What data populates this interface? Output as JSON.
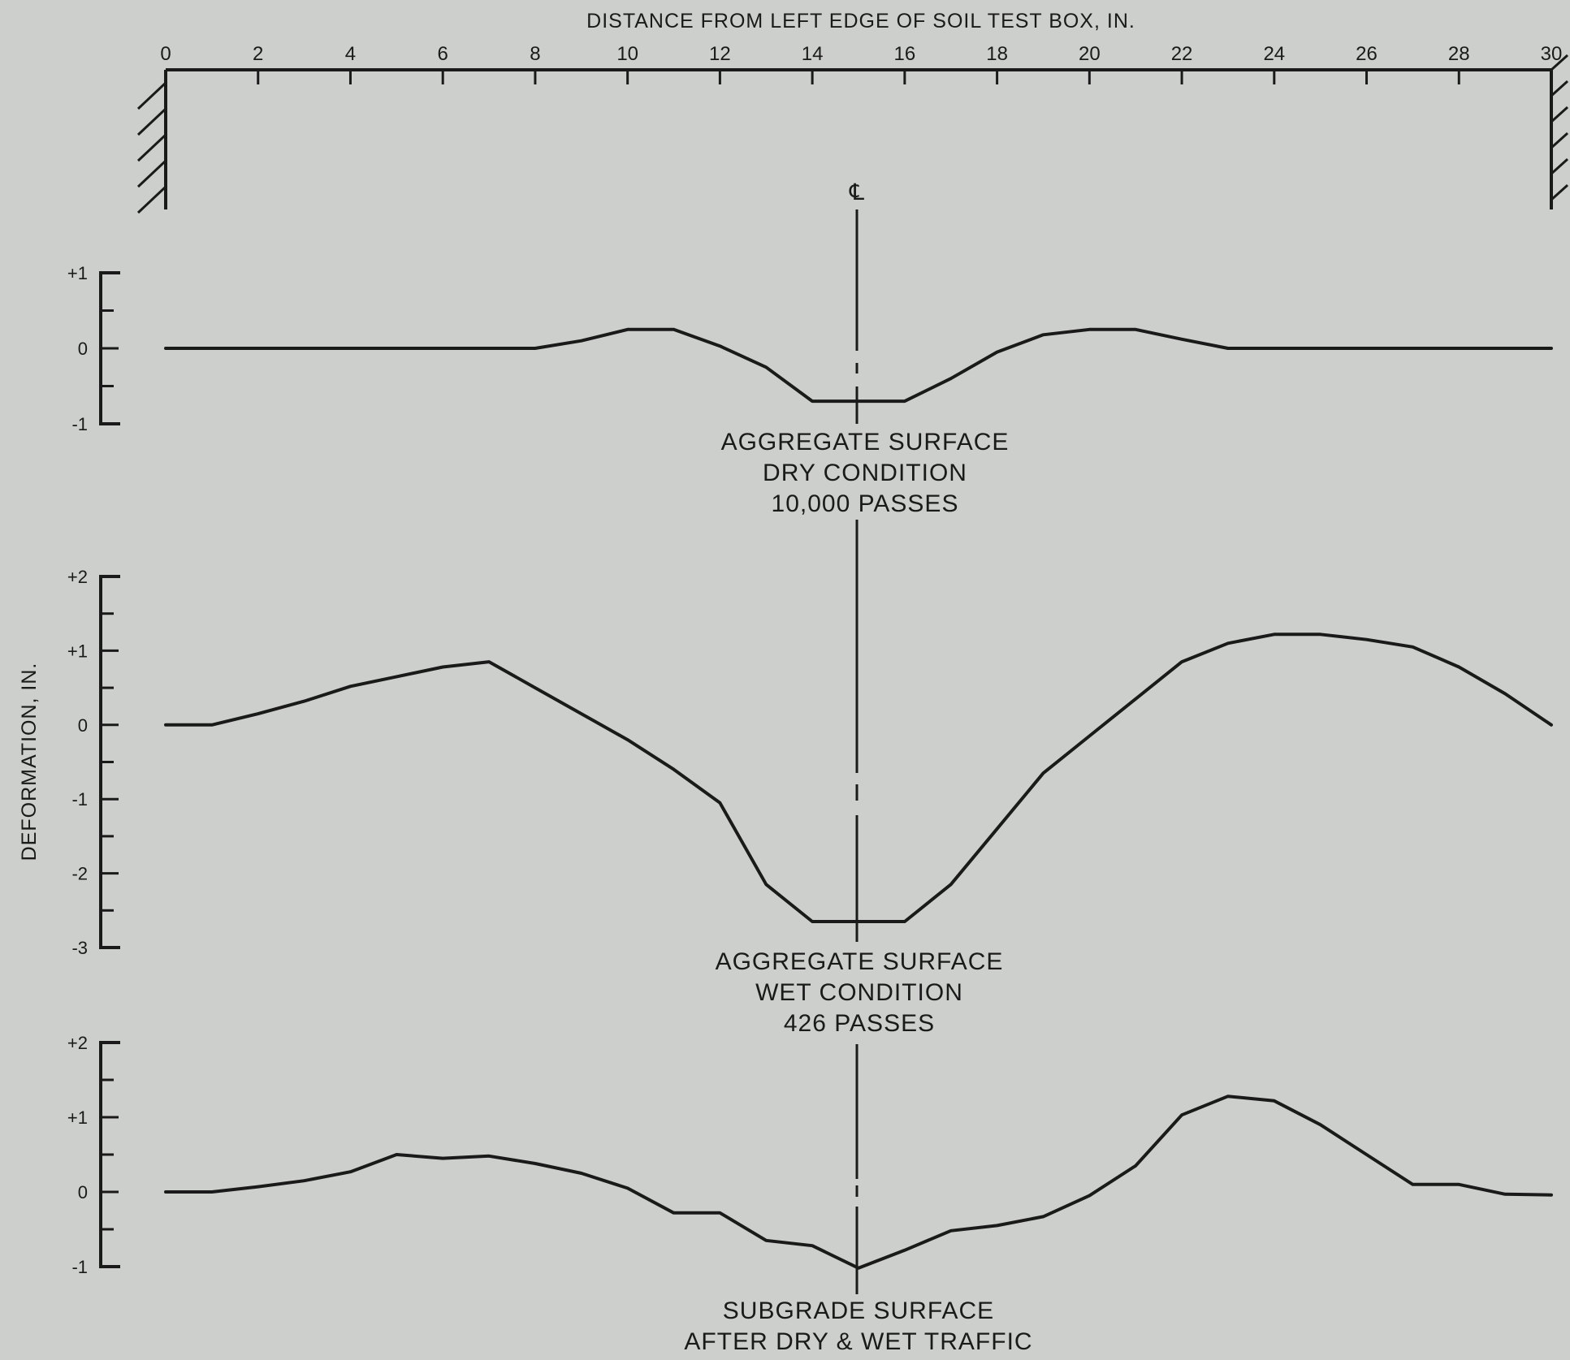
{
  "chart_data": {
    "type": "line",
    "x_axis": {
      "title": "DISTANCE FROM LEFT EDGE OF SOIL TEST BOX, IN.",
      "range": [
        0,
        30
      ],
      "ticks": [
        "0",
        "2",
        "4",
        "6",
        "8",
        "10",
        "12",
        "14",
        "16",
        "18",
        "20",
        "22",
        "24",
        "26",
        "28",
        "30"
      ],
      "position": "top"
    },
    "y_axis_title": "DEFORMATION, IN.",
    "centerline": {
      "x": 15,
      "label": "℄"
    },
    "panels": [
      {
        "caption": [
          "AGGREGATE SURFACE",
          "DRY CONDITION",
          "10,000 PASSES"
        ],
        "ylim": [
          -1,
          1
        ],
        "y_tick_labels": [
          {
            "value": 1,
            "label": "+1"
          },
          {
            "value": 0,
            "label": "0"
          },
          {
            "value": -1,
            "label": "-1"
          }
        ],
        "x": [
          0,
          1,
          2,
          4,
          6,
          8,
          9,
          10,
          11,
          12,
          13,
          14,
          15,
          16,
          17,
          18,
          19,
          20,
          21,
          22,
          23,
          24,
          26,
          28,
          30
        ],
        "y": [
          0,
          0,
          0,
          0,
          0,
          0,
          0.1,
          0.25,
          0.25,
          0.03,
          -0.25,
          -0.7,
          -0.7,
          -0.7,
          -0.4,
          -0.05,
          0.18,
          0.25,
          0.25,
          0.12,
          0,
          0,
          0,
          0,
          0
        ]
      },
      {
        "caption": [
          "AGGREGATE SURFACE",
          "WET CONDITION",
          "426 PASSES"
        ],
        "ylim": [
          -3,
          2
        ],
        "y_tick_labels": [
          {
            "value": 2,
            "label": "+2"
          },
          {
            "value": 1,
            "label": "+1"
          },
          {
            "value": 0,
            "label": "0"
          },
          {
            "value": -1,
            "label": "-1"
          },
          {
            "value": -2,
            "label": "-2"
          },
          {
            "value": -3,
            "label": "-3"
          }
        ],
        "x": [
          0,
          1,
          2,
          3,
          4,
          5,
          6,
          7,
          8,
          9,
          10,
          11,
          12,
          13,
          14,
          15,
          16,
          17,
          18,
          19,
          20,
          21,
          22,
          23,
          24,
          25,
          26,
          27,
          28,
          29,
          30
        ],
        "y": [
          0,
          0,
          0.15,
          0.32,
          0.52,
          0.65,
          0.78,
          0.85,
          0.5,
          0.15,
          -0.2,
          -0.6,
          -1.05,
          -2.15,
          -2.65,
          -2.65,
          -2.65,
          -2.15,
          -1.4,
          -0.65,
          -0.15,
          0.35,
          0.85,
          1.1,
          1.22,
          1.22,
          1.15,
          1.05,
          0.78,
          0.42,
          0
        ]
      },
      {
        "caption": [
          "SUBGRADE SURFACE",
          "AFTER DRY & WET TRAFFIC"
        ],
        "ylim": [
          -1,
          2
        ],
        "y_tick_labels": [
          {
            "value": 2,
            "label": "+2"
          },
          {
            "value": 1,
            "label": "+1"
          },
          {
            "value": 0,
            "label": "0"
          },
          {
            "value": -1,
            "label": "-1"
          }
        ],
        "x": [
          0,
          1,
          2,
          3,
          4,
          5,
          6,
          7,
          8,
          9,
          10,
          11,
          12,
          13,
          14,
          15,
          16,
          17,
          18,
          19,
          20,
          21,
          22,
          23,
          24,
          25,
          26,
          27,
          28,
          29,
          30
        ],
        "y": [
          0,
          0,
          0.07,
          0.15,
          0.27,
          0.5,
          0.45,
          0.48,
          0.38,
          0.25,
          0.05,
          -0.28,
          -0.28,
          -0.65,
          -0.72,
          -1.02,
          -0.78,
          -0.52,
          -0.45,
          -0.33,
          -0.05,
          0.35,
          1.03,
          1.28,
          1.22,
          0.9,
          0.5,
          0.1,
          0.1,
          -0.03,
          -0.04
        ]
      }
    ]
  }
}
